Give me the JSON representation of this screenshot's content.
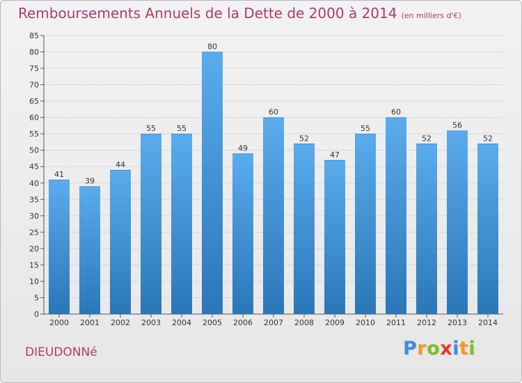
{
  "title": "Remboursements Annuels de la Dette de 2000 à 2014",
  "subtitle": "(en milliers d'€)",
  "commune": "DIEUDONNé",
  "logo": {
    "text": "Proxiti",
    "letters": [
      {
        "ch": "P",
        "color": "#3a8fd8"
      },
      {
        "ch": "r",
        "color": "#f39a1e"
      },
      {
        "ch": "o",
        "color": "#7cbd2a"
      },
      {
        "ch": "x",
        "color": "#e23b2e"
      },
      {
        "ch": "i",
        "color": "#3a8fd8"
      },
      {
        "ch": "t",
        "color": "#f39a1e"
      },
      {
        "ch": "i",
        "color": "#7cbd2a"
      }
    ]
  },
  "colors": {
    "title": "#b0396a",
    "bar_top": "#5aacec",
    "bar_bottom": "#2a77b8",
    "grid": "#d8d8d8"
  },
  "chart_data": {
    "type": "bar",
    "title": "Remboursements Annuels de la Dette de 2000 à 2014",
    "subtitle": "(en milliers d'€)",
    "categories": [
      "2000",
      "2001",
      "2002",
      "2003",
      "2004",
      "2005",
      "2006",
      "2007",
      "2008",
      "2009",
      "2010",
      "2011",
      "2012",
      "2013",
      "2014"
    ],
    "values": [
      41,
      39,
      44,
      55,
      55,
      80,
      49,
      60,
      52,
      47,
      55,
      60,
      52,
      56,
      52
    ],
    "ylim": [
      0,
      85
    ],
    "yticks": [
      0,
      5,
      10,
      15,
      20,
      25,
      30,
      35,
      40,
      45,
      50,
      55,
      60,
      65,
      70,
      75,
      80,
      85
    ],
    "grid": true,
    "data_labels": true
  }
}
